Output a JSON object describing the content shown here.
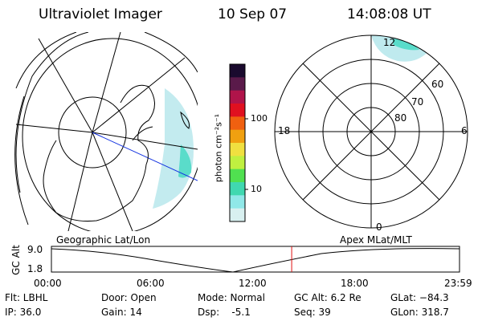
{
  "header": {
    "title": "Ultraviolet Imager",
    "date": "10 Sep 07",
    "time": "14:08:08 UT"
  },
  "colorbar": {
    "label": "photon cm⁻²s⁻¹",
    "ticks": [
      "100",
      "10"
    ],
    "colors": [
      "#1a0a2e",
      "#5a1a4a",
      "#b0144a",
      "#e01020",
      "#f06010",
      "#f0a010",
      "#f0e040",
      "#c0f040",
      "#50e050",
      "#40d8b0",
      "#90e8e8",
      "#d8f0f0"
    ]
  },
  "left_map": {
    "caption": "Geographic Lat/Lon"
  },
  "right_map": {
    "caption": "Apex  MLat/MLT",
    "mlt_labels": [
      "12",
      "18",
      "6",
      "0"
    ],
    "mlat_labels": [
      "60",
      "70",
      "80"
    ]
  },
  "alt_plot": {
    "ylabel": "GC Alt",
    "ytick_top": "9.0",
    "ytick_bottom": "1.8",
    "xticks": [
      "00:00",
      "06:00",
      "12:00",
      "18:00",
      "23:59"
    ],
    "marker_time_hours": 14.13
  },
  "info": {
    "flt": "Flt: LBHL",
    "ip": "IP: 36.0",
    "door": "Door: Open",
    "gain": "Gain: 14",
    "mode": "Mode: Normal",
    "dsp": "Dsp:    -5.1",
    "gcalt": "GC Alt: 6.2 Re",
    "seq": "Seq: 39",
    "glat": "GLat: −84.3",
    "glon": "GLon: 318.7"
  }
}
